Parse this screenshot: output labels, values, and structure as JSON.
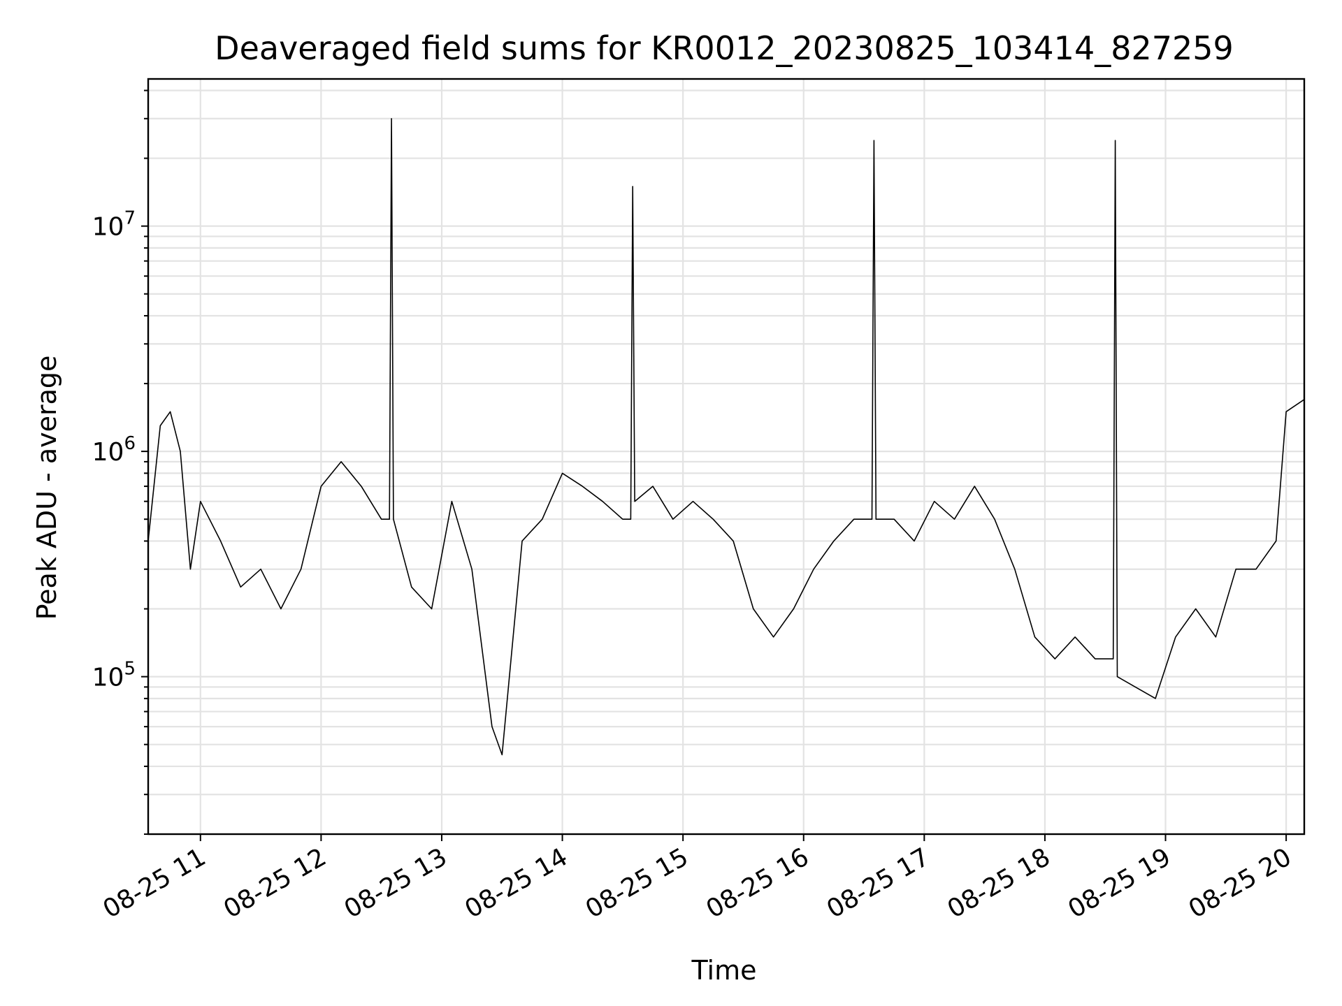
{
  "chart_data": {
    "type": "line",
    "title": "Deaveraged field sums for KR0012_20230825_103414_827259",
    "xlabel": "Time",
    "ylabel": "Peak ADU - average",
    "yscale": "log",
    "xlim": [
      "2023-08-25 10:34",
      "2023-08-25 20:09"
    ],
    "ylim": [
      20000,
      45000000
    ],
    "grid": true,
    "line_color": "#000000",
    "x_ticks": [
      "08-25 11",
      "08-25 12",
      "08-25 13",
      "08-25 14",
      "08-25 15",
      "08-25 16",
      "08-25 17",
      "08-25 18",
      "08-25 19",
      "08-25 20"
    ],
    "y_ticks": [
      {
        "base": "10",
        "exp": "5",
        "value": 100000
      },
      {
        "base": "10",
        "exp": "6",
        "value": 1000000
      },
      {
        "base": "10",
        "exp": "7",
        "value": 10000000
      }
    ],
    "series": [
      {
        "x": [
          "2023-08-25 10:34",
          "2023-08-25 10:40",
          "2023-08-25 10:45",
          "2023-08-25 10:50",
          "2023-08-25 10:55",
          "2023-08-25 11:00",
          "2023-08-25 11:10",
          "2023-08-25 11:20",
          "2023-08-25 11:30",
          "2023-08-25 11:40",
          "2023-08-25 11:50",
          "2023-08-25 12:00",
          "2023-08-25 12:10",
          "2023-08-25 12:20",
          "2023-08-25 12:30",
          "2023-08-25 12:34",
          "2023-08-25 12:35",
          "2023-08-25 12:36",
          "2023-08-25 12:45",
          "2023-08-25 12:55",
          "2023-08-25 13:05",
          "2023-08-25 13:15",
          "2023-08-25 13:25",
          "2023-08-25 13:30",
          "2023-08-25 13:40",
          "2023-08-25 13:50",
          "2023-08-25 14:00",
          "2023-08-25 14:10",
          "2023-08-25 14:20",
          "2023-08-25 14:30",
          "2023-08-25 14:34",
          "2023-08-25 14:35",
          "2023-08-25 14:36",
          "2023-08-25 14:45",
          "2023-08-25 14:55",
          "2023-08-25 15:05",
          "2023-08-25 15:15",
          "2023-08-25 15:25",
          "2023-08-25 15:35",
          "2023-08-25 15:45",
          "2023-08-25 15:55",
          "2023-08-25 16:05",
          "2023-08-25 16:15",
          "2023-08-25 16:25",
          "2023-08-25 16:34",
          "2023-08-25 16:35",
          "2023-08-25 16:36",
          "2023-08-25 16:45",
          "2023-08-25 16:55",
          "2023-08-25 17:05",
          "2023-08-25 17:15",
          "2023-08-25 17:25",
          "2023-08-25 17:35",
          "2023-08-25 17:45",
          "2023-08-25 17:55",
          "2023-08-25 18:05",
          "2023-08-25 18:15",
          "2023-08-25 18:25",
          "2023-08-25 18:34",
          "2023-08-25 18:35",
          "2023-08-25 18:36",
          "2023-08-25 18:45",
          "2023-08-25 18:55",
          "2023-08-25 19:05",
          "2023-08-25 19:15",
          "2023-08-25 19:25",
          "2023-08-25 19:35",
          "2023-08-25 19:45",
          "2023-08-25 19:55",
          "2023-08-25 20:00",
          "2023-08-25 20:09"
        ],
        "y": [
          400000,
          1300000,
          1500000,
          1000000,
          300000,
          600000,
          400000,
          250000,
          300000,
          200000,
          300000,
          700000,
          900000,
          700000,
          500000,
          500000,
          30000000,
          500000,
          250000,
          200000,
          600000,
          300000,
          60000,
          45000,
          400000,
          500000,
          800000,
          700000,
          600000,
          500000,
          500000,
          15000000,
          600000,
          700000,
          500000,
          600000,
          500000,
          400000,
          200000,
          150000,
          200000,
          300000,
          400000,
          500000,
          500000,
          24000000,
          500000,
          500000,
          400000,
          600000,
          500000,
          700000,
          500000,
          300000,
          150000,
          120000,
          150000,
          120000,
          120000,
          24000000,
          100000,
          90000,
          80000,
          150000,
          200000,
          150000,
          300000,
          300000,
          400000,
          1500000,
          1700000
        ]
      }
    ]
  }
}
